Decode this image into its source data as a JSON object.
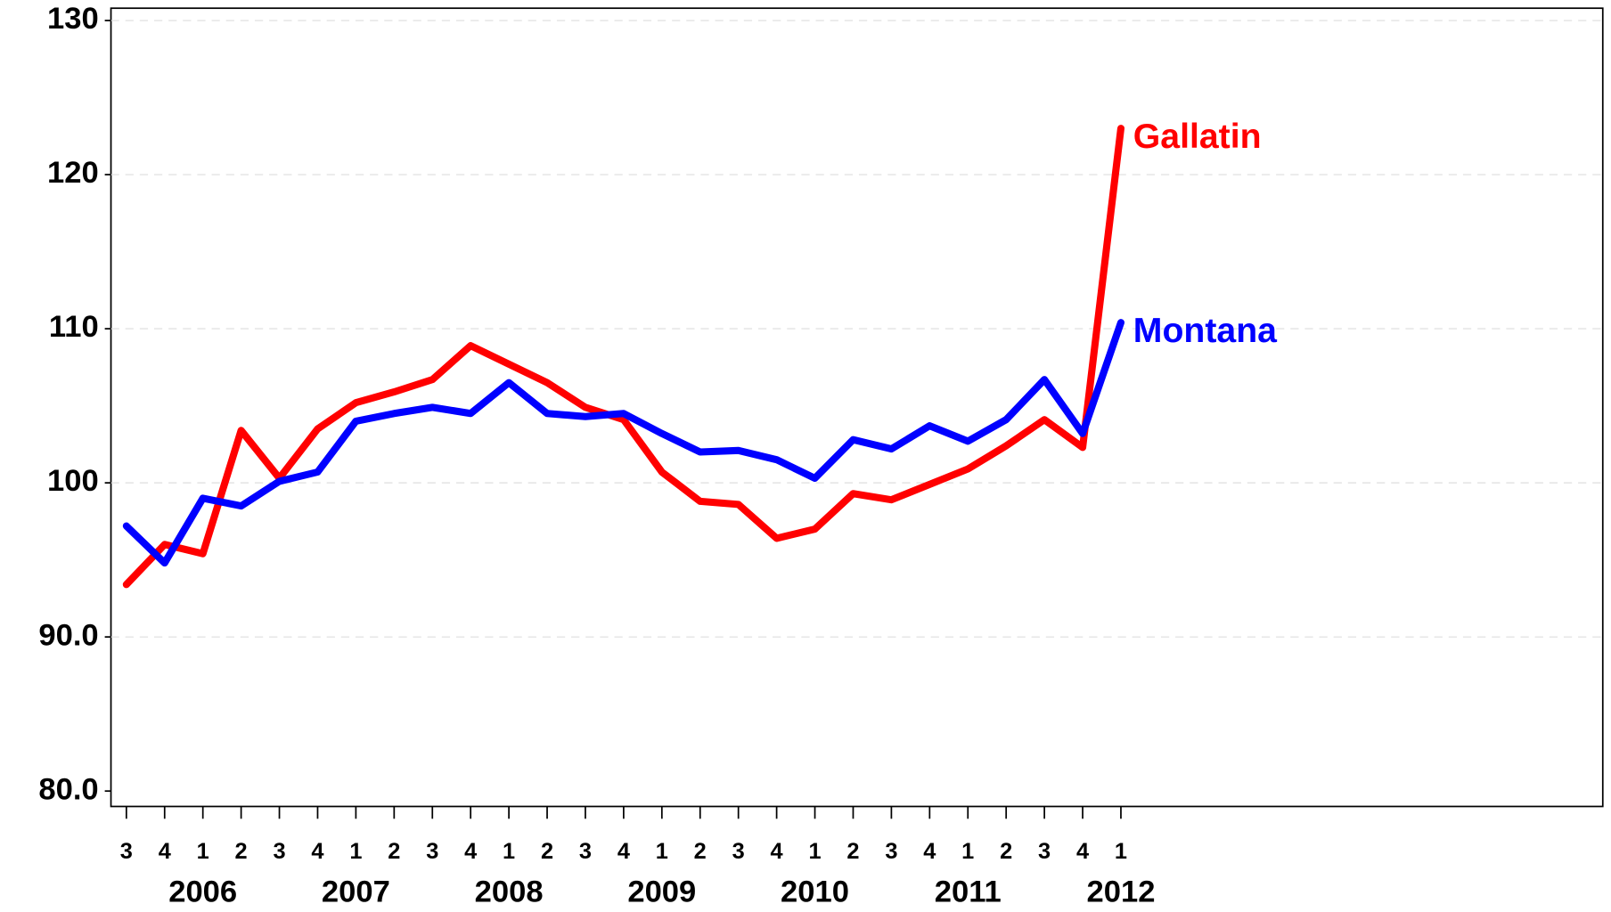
{
  "chart_data": {
    "type": "line",
    "categories": [
      "3",
      "4",
      "1",
      "2",
      "3",
      "4",
      "1",
      "2",
      "3",
      "4",
      "1",
      "2",
      "3",
      "4",
      "1",
      "2",
      "3",
      "4",
      "1",
      "2",
      "3",
      "4",
      "1",
      "2",
      "3",
      "4",
      "1"
    ],
    "year_labels": [
      null,
      null,
      "2006",
      null,
      null,
      null,
      "2007",
      null,
      null,
      null,
      "2008",
      null,
      null,
      null,
      "2009",
      null,
      null,
      null,
      "2010",
      null,
      null,
      null,
      "2011",
      null,
      null,
      null,
      "2012"
    ],
    "series": [
      {
        "name": "Gallatin",
        "color": "#ff0000",
        "values": [
          93.4,
          96.0,
          95.4,
          103.4,
          100.3,
          103.5,
          105.2,
          105.9,
          106.7,
          108.9,
          107.7,
          106.5,
          104.9,
          104.1,
          100.7,
          98.8,
          98.6,
          96.4,
          97.0,
          99.3,
          98.9,
          99.9,
          100.9,
          102.4,
          104.1,
          102.3,
          123.0
        ]
      },
      {
        "name": "Montana",
        "color": "#0000ff",
        "values": [
          97.2,
          94.8,
          99.0,
          98.5,
          100.1,
          100.7,
          104.0,
          104.5,
          104.9,
          104.5,
          106.5,
          104.5,
          104.3,
          104.5,
          103.2,
          102.0,
          102.1,
          101.5,
          100.3,
          102.8,
          102.2,
          103.7,
          102.7,
          104.1,
          106.7,
          103.2,
          110.4
        ]
      }
    ],
    "ylim": [
      79,
      130.8
    ],
    "yticks": [
      {
        "value": 80,
        "label": "80.0"
      },
      {
        "value": 90,
        "label": "90.0"
      },
      100,
      110,
      120,
      130
    ],
    "grid": true
  }
}
